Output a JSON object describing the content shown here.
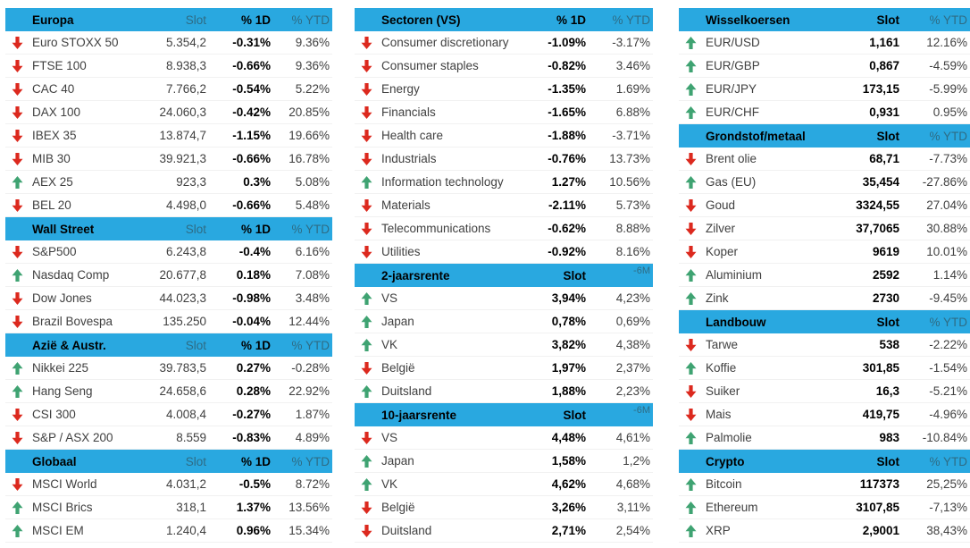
{
  "colors": {
    "header_bg": "#29A8E0",
    "header_muted_text": "#2E6C85",
    "up_arrow": "#3FA372",
    "down_arrow": "#DC291E"
  },
  "columns": [
    {
      "name": "indices",
      "tables": [
        {
          "id": "europa",
          "title": "Europa",
          "cols": [
            {
              "label": "Slot",
              "bold": false
            },
            {
              "label": "% 1D",
              "bold": true
            },
            {
              "label": "% YTD",
              "bold": false
            }
          ],
          "rows": [
            {
              "dir": "down",
              "name": "Euro STOXX 50",
              "cells": [
                "5.354,2",
                "-0.31%",
                "9.36%"
              ]
            },
            {
              "dir": "down",
              "name": "FTSE 100",
              "cells": [
                "8.938,3",
                "-0.66%",
                "9.36%"
              ]
            },
            {
              "dir": "down",
              "name": "CAC 40",
              "cells": [
                "7.766,2",
                "-0.54%",
                "5.22%"
              ]
            },
            {
              "dir": "down",
              "name": "DAX 100",
              "cells": [
                "24.060,3",
                "-0.42%",
                "20.85%"
              ]
            },
            {
              "dir": "down",
              "name": "IBEX 35",
              "cells": [
                "13.874,7",
                "-1.15%",
                "19.66%"
              ]
            },
            {
              "dir": "down",
              "name": "MIB 30",
              "cells": [
                "39.921,3",
                "-0.66%",
                "16.78%"
              ]
            },
            {
              "dir": "up",
              "name": "AEX 25",
              "cells": [
                "923,3",
                "0.3%",
                "5.08%"
              ]
            },
            {
              "dir": "down",
              "name": "BEL 20",
              "cells": [
                "4.498,0",
                "-0.66%",
                "5.48%"
              ]
            }
          ]
        },
        {
          "id": "wall-street",
          "title": "Wall Street",
          "cols": [
            {
              "label": "Slot",
              "bold": false
            },
            {
              "label": "% 1D",
              "bold": true
            },
            {
              "label": "% YTD",
              "bold": false
            }
          ],
          "rows": [
            {
              "dir": "down",
              "name": "S&P500",
              "cells": [
                "6.243,8",
                "-0.4%",
                "6.16%"
              ]
            },
            {
              "dir": "up",
              "name": "Nasdaq Comp",
              "cells": [
                "20.677,8",
                "0.18%",
                "7.08%"
              ]
            },
            {
              "dir": "down",
              "name": "Dow Jones",
              "cells": [
                "44.023,3",
                "-0.98%",
                "3.48%"
              ]
            },
            {
              "dir": "down",
              "name": "Brazil Bovespa",
              "cells": [
                "135.250",
                "-0.04%",
                "12.44%"
              ]
            }
          ]
        },
        {
          "id": "azie-austr",
          "title": "Azië & Austr.",
          "cols": [
            {
              "label": "Slot",
              "bold": false
            },
            {
              "label": "% 1D",
              "bold": true
            },
            {
              "label": "% YTD",
              "bold": false
            }
          ],
          "rows": [
            {
              "dir": "up",
              "name": "Nikkei 225",
              "cells": [
                "39.783,5",
                "0.27%",
                "-0.28%"
              ]
            },
            {
              "dir": "up",
              "name": "Hang Seng",
              "cells": [
                "24.658,6",
                "0.28%",
                "22.92%"
              ]
            },
            {
              "dir": "down",
              "name": "CSI 300",
              "cells": [
                "4.008,4",
                "-0.27%",
                "1.87%"
              ]
            },
            {
              "dir": "down",
              "name": "S&P / ASX 200",
              "cells": [
                "8.559",
                "-0.83%",
                "4.89%"
              ]
            }
          ]
        },
        {
          "id": "globaal",
          "title": "Globaal",
          "cols": [
            {
              "label": "Slot",
              "bold": false
            },
            {
              "label": "% 1D",
              "bold": true
            },
            {
              "label": "% YTD",
              "bold": false
            }
          ],
          "rows": [
            {
              "dir": "down",
              "name": "MSCI World",
              "cells": [
                "4.031,2",
                "-0.5%",
                "8.72%"
              ]
            },
            {
              "dir": "up",
              "name": "MSCI Brics",
              "cells": [
                "318,1",
                "1.37%",
                "13.56%"
              ]
            },
            {
              "dir": "up",
              "name": "MSCI EM",
              "cells": [
                "1.240,4",
                "0.96%",
                "15.34%"
              ]
            }
          ]
        }
      ]
    },
    {
      "name": "sectors-rates",
      "tables": [
        {
          "id": "sectoren-vs",
          "title": "Sectoren (VS)",
          "cols": [
            {
              "label": "% 1D",
              "bold": true
            },
            {
              "label": "% YTD",
              "bold": false
            }
          ],
          "rows": [
            {
              "dir": "down",
              "name": "Consumer discretionary",
              "cells": [
                "-1.09%",
                "-3.17%"
              ]
            },
            {
              "dir": "down",
              "name": "Consumer staples",
              "cells": [
                "-0.82%",
                "3.46%"
              ]
            },
            {
              "dir": "down",
              "name": "Energy",
              "cells": [
                "-1.35%",
                "1.69%"
              ]
            },
            {
              "dir": "down",
              "name": "Financials",
              "cells": [
                "-1.65%",
                "6.88%"
              ]
            },
            {
              "dir": "down",
              "name": "Health care",
              "cells": [
                "-1.88%",
                "-3.71%"
              ]
            },
            {
              "dir": "down",
              "name": "Industrials",
              "cells": [
                "-0.76%",
                "13.73%"
              ]
            },
            {
              "dir": "up",
              "name": "Information technology",
              "cells": [
                "1.27%",
                "10.56%"
              ]
            },
            {
              "dir": "down",
              "name": "Materials",
              "cells": [
                "-2.11%",
                "5.73%"
              ]
            },
            {
              "dir": "down",
              "name": "Telecommunications",
              "cells": [
                "-0.62%",
                "8.88%"
              ]
            },
            {
              "dir": "down",
              "name": "Utilities",
              "cells": [
                "-0.92%",
                "8.16%"
              ]
            }
          ]
        },
        {
          "id": "2-jaarsrente",
          "title": "2-jaarsrente",
          "cols": [
            {
              "label": "Slot",
              "bold": true
            },
            {
              "label": "-6M",
              "bold": false,
              "small": true
            }
          ],
          "rows": [
            {
              "dir": "up",
              "name": "VS",
              "cells": [
                "3,94%",
                "4,23%"
              ]
            },
            {
              "dir": "up",
              "name": "Japan",
              "cells": [
                "0,78%",
                "0,69%"
              ]
            },
            {
              "dir": "up",
              "name": "VK",
              "cells": [
                "3,82%",
                "4,38%"
              ]
            },
            {
              "dir": "down",
              "name": "België",
              "cells": [
                "1,97%",
                "2,37%"
              ]
            },
            {
              "dir": "up",
              "name": "Duitsland",
              "cells": [
                "1,88%",
                "2,23%"
              ]
            }
          ]
        },
        {
          "id": "10-jaarsrente",
          "title": "10-jaarsrente",
          "cols": [
            {
              "label": "Slot",
              "bold": true
            },
            {
              "label": "-6M",
              "bold": false,
              "small": true
            }
          ],
          "rows": [
            {
              "dir": "down",
              "name": "VS",
              "cells": [
                "4,48%",
                "4,61%"
              ]
            },
            {
              "dir": "up",
              "name": "Japan",
              "cells": [
                "1,58%",
                "1,2%"
              ]
            },
            {
              "dir": "up",
              "name": "VK",
              "cells": [
                "4,62%",
                "4,68%"
              ]
            },
            {
              "dir": "down",
              "name": "België",
              "cells": [
                "3,26%",
                "3,11%"
              ]
            },
            {
              "dir": "down",
              "name": "Duitsland",
              "cells": [
                "2,71%",
                "2,54%"
              ]
            }
          ]
        }
      ]
    },
    {
      "name": "fx-commodities",
      "tables": [
        {
          "id": "wisselkoersen",
          "title": "Wisselkoersen",
          "cols": [
            {
              "label": "Slot",
              "bold": true
            },
            {
              "label": "% YTD",
              "bold": false
            }
          ],
          "rows": [
            {
              "dir": "up",
              "name": "EUR/USD",
              "cells": [
                "1,161",
                "12.16%"
              ]
            },
            {
              "dir": "up",
              "name": "EUR/GBP",
              "cells": [
                "0,867",
                "-4.59%"
              ]
            },
            {
              "dir": "up",
              "name": "EUR/JPY",
              "cells": [
                "173,15",
                "-5.99%"
              ]
            },
            {
              "dir": "up",
              "name": "EUR/CHF",
              "cells": [
                "0,931",
                "0.95%"
              ]
            }
          ]
        },
        {
          "id": "grondstof-metaal",
          "title": "Grondstof/metaal",
          "cols": [
            {
              "label": "Slot",
              "bold": true
            },
            {
              "label": "% YTD",
              "bold": false
            }
          ],
          "rows": [
            {
              "dir": "down",
              "name": "Brent olie",
              "cells": [
                "68,71",
                "-7.73%"
              ]
            },
            {
              "dir": "up",
              "name": "Gas (EU)",
              "cells": [
                "35,454",
                "-27.86%"
              ]
            },
            {
              "dir": "down",
              "name": "Goud",
              "cells": [
                "3324,55",
                "27.04%"
              ]
            },
            {
              "dir": "down",
              "name": "Zilver",
              "cells": [
                "37,7065",
                "30.88%"
              ]
            },
            {
              "dir": "down",
              "name": "Koper",
              "cells": [
                "9619",
                "10.01%"
              ]
            },
            {
              "dir": "up",
              "name": "Aluminium",
              "cells": [
                "2592",
                "1.14%"
              ]
            },
            {
              "dir": "up",
              "name": "Zink",
              "cells": [
                "2730",
                "-9.45%"
              ]
            }
          ]
        },
        {
          "id": "landbouw",
          "title": "Landbouw",
          "cols": [
            {
              "label": "Slot",
              "bold": true
            },
            {
              "label": "% YTD",
              "bold": false
            }
          ],
          "rows": [
            {
              "dir": "down",
              "name": "Tarwe",
              "cells": [
                "538",
                "-2.22%"
              ]
            },
            {
              "dir": "up",
              "name": "Koffie",
              "cells": [
                "301,85",
                "-1.54%"
              ]
            },
            {
              "dir": "down",
              "name": "Suiker",
              "cells": [
                "16,3",
                "-5.21%"
              ]
            },
            {
              "dir": "down",
              "name": "Mais",
              "cells": [
                "419,75",
                "-4.96%"
              ]
            },
            {
              "dir": "up",
              "name": "Palmolie",
              "cells": [
                "983",
                "-10.84%"
              ]
            }
          ]
        },
        {
          "id": "crypto",
          "title": "Crypto",
          "cols": [
            {
              "label": "Slot",
              "bold": true
            },
            {
              "label": "% YTD",
              "bold": false
            }
          ],
          "rows": [
            {
              "dir": "up",
              "name": "Bitcoin",
              "cells": [
                "117373",
                "25,25%"
              ]
            },
            {
              "dir": "up",
              "name": "Ethereum",
              "cells": [
                "3107,85",
                "-7,13%"
              ]
            },
            {
              "dir": "up",
              "name": "XRP",
              "cells": [
                "2,9001",
                "38,43%"
              ]
            }
          ]
        }
      ]
    }
  ]
}
